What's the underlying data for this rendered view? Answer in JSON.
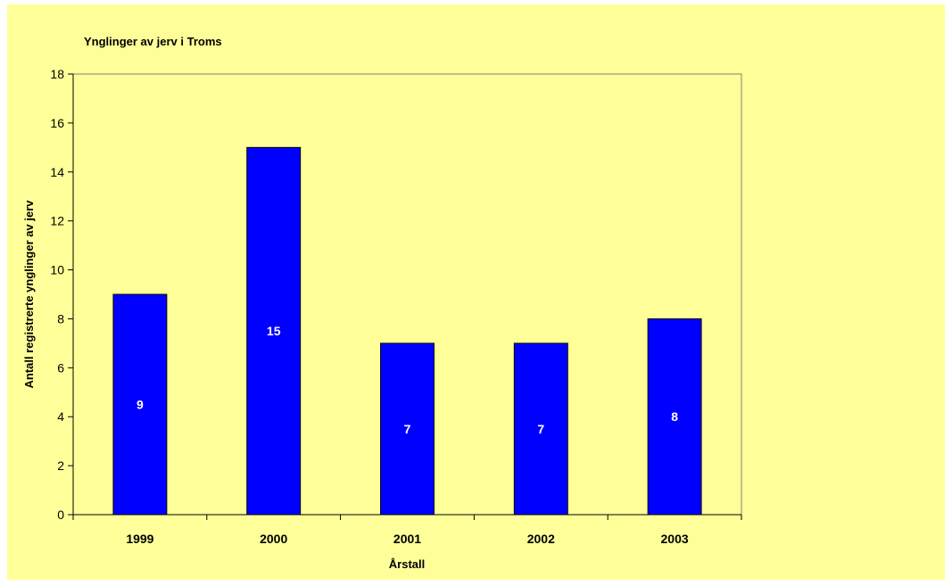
{
  "colors": {
    "chart_background": "#FFFF99",
    "plot_background": "#FFFF99",
    "bar_fill": "#0000FF",
    "bar_stroke": "#000000",
    "axis": "#000000",
    "plot_border": "#808080",
    "data_label": "#FFFFFF",
    "text": "#000000"
  },
  "chart_data": {
    "type": "bar",
    "title": "Ynglinger av jerv i Troms",
    "xlabel": "Årstall",
    "ylabel": "Antall registrerte ynglinger av jerv",
    "categories": [
      "1999",
      "2000",
      "2001",
      "2002",
      "2003"
    ],
    "series": [
      {
        "values": [
          9,
          15,
          7,
          7,
          8
        ]
      }
    ],
    "ylim": [
      0,
      18
    ],
    "yticks": [
      0,
      2,
      4,
      6,
      8,
      10,
      12,
      14,
      16,
      18
    ],
    "grid": false,
    "legend": "none",
    "data_labels": "inside-center"
  }
}
